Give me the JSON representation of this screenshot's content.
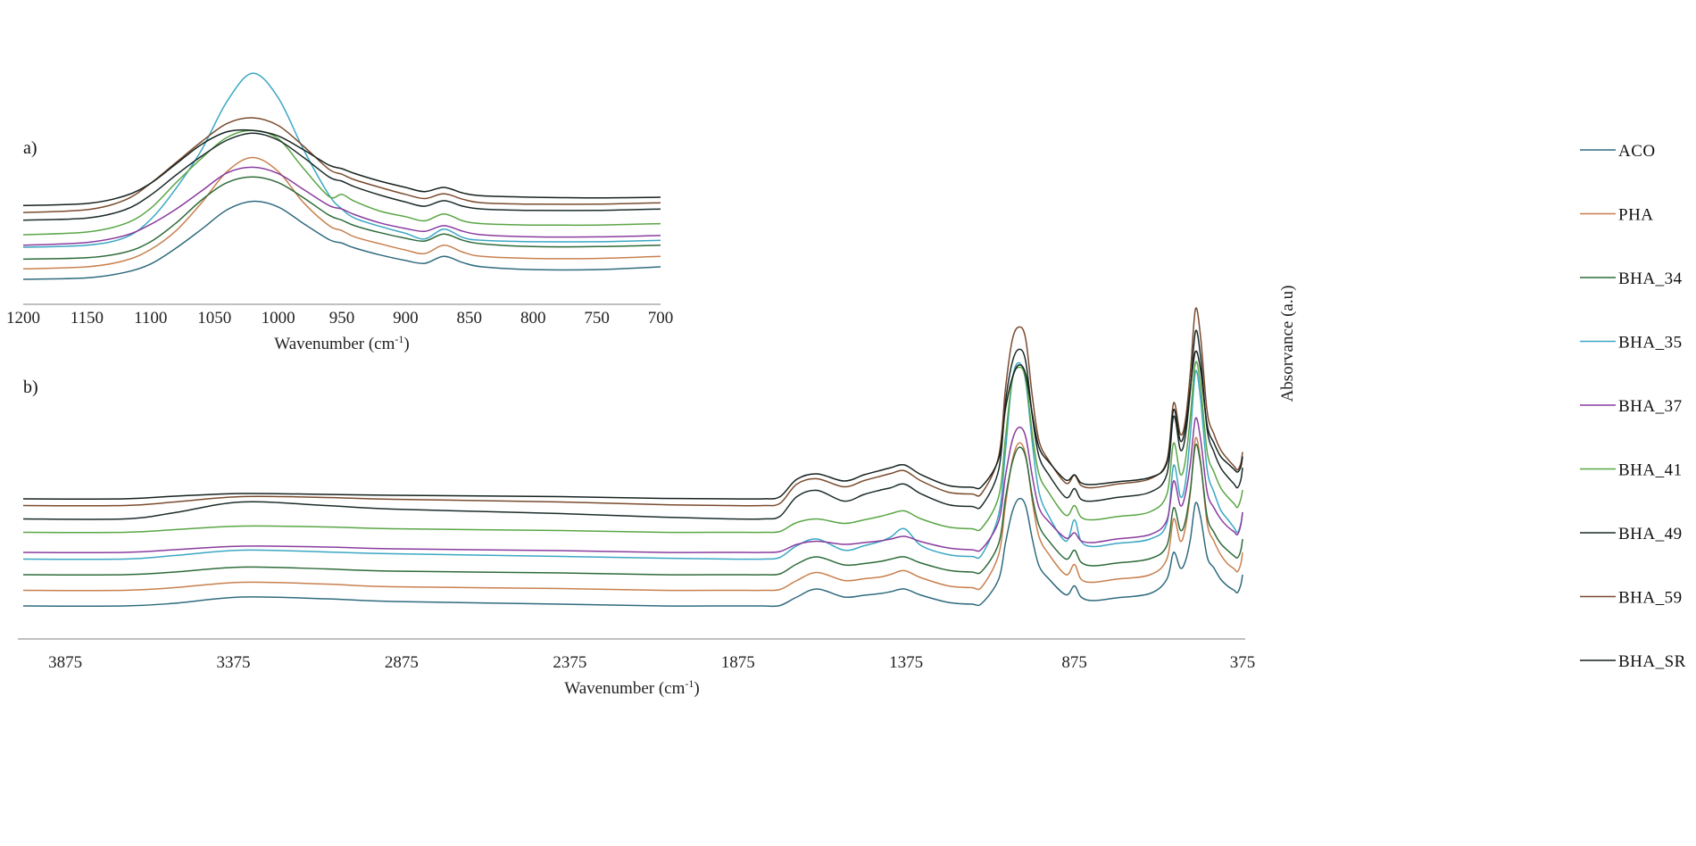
{
  "chart_data": [
    {
      "panel": "a)",
      "type": "line",
      "title": "",
      "xlabel": "Wavenumber (cm-1)",
      "ylabel": "Absorvance (a.u)",
      "xlim": [
        1200,
        700
      ],
      "x_ticks": [
        1200,
        1150,
        1100,
        1050,
        1000,
        950,
        900,
        850,
        800,
        750,
        700
      ],
      "grid": false,
      "x": [
        1200,
        1150,
        1120,
        1100,
        1080,
        1060,
        1040,
        1020,
        1000,
        980,
        960,
        950,
        940,
        920,
        900,
        885,
        870,
        855,
        840,
        800,
        750,
        700
      ],
      "series": [
        {
          "name": "ACO",
          "color": "#2f6b7e",
          "offset": 0,
          "values": [
            0,
            2,
            10,
            22,
            45,
            72,
            100,
            112,
            104,
            80,
            57,
            52,
            45,
            35,
            27,
            23,
            33,
            24,
            18,
            14,
            14,
            18
          ]
        },
        {
          "name": "PHA",
          "color": "#c8804f",
          "offset": 15,
          "values": [
            0,
            3,
            12,
            28,
            55,
            95,
            140,
            160,
            140,
            95,
            62,
            55,
            46,
            36,
            27,
            22,
            34,
            24,
            18,
            15,
            15,
            18
          ]
        },
        {
          "name": "BHA_34",
          "color": "#2e6b3a",
          "offset": 29,
          "values": [
            0,
            2,
            10,
            25,
            52,
            85,
            110,
            118,
            110,
            88,
            63,
            56,
            48,
            38,
            30,
            26,
            36,
            27,
            22,
            18,
            18,
            20
          ]
        },
        {
          "name": "BHA_35",
          "color": "#3ba7c4",
          "offset": 46,
          "values": [
            0,
            3,
            14,
            40,
            85,
            140,
            210,
            250,
            215,
            140,
            75,
            55,
            42,
            30,
            20,
            12,
            26,
            14,
            10,
            8,
            8,
            10
          ]
        },
        {
          "name": "BHA_37",
          "color": "#8a3c9e",
          "offset": 49,
          "values": [
            0,
            4,
            14,
            30,
            52,
            78,
            104,
            112,
            103,
            80,
            57,
            52,
            44,
            32,
            24,
            20,
            28,
            20,
            15,
            12,
            12,
            14
          ]
        },
        {
          "name": "BHA_41",
          "color": "#5aa646",
          "offset": 64,
          "values": [
            0,
            4,
            16,
            38,
            75,
            110,
            140,
            150,
            138,
            95,
            55,
            58,
            48,
            34,
            26,
            20,
            30,
            20,
            16,
            14,
            14,
            16
          ]
        },
        {
          "name": "BHA_49",
          "color": "#1c2b2b",
          "offset": 85,
          "values": [
            0,
            3,
            15,
            36,
            65,
            92,
            115,
            125,
            115,
            90,
            62,
            56,
            48,
            36,
            26,
            20,
            28,
            20,
            16,
            14,
            14,
            16
          ]
        },
        {
          "name": "BHA_59",
          "color": "#7a4b2e",
          "offset": 96,
          "values": [
            0,
            4,
            18,
            42,
            72,
            102,
            128,
            136,
            125,
            95,
            62,
            55,
            47,
            36,
            26,
            20,
            27,
            19,
            14,
            12,
            12,
            14
          ]
        },
        {
          "name": "BHA_SR",
          "color": "#15221f",
          "offset": 106,
          "values": [
            0,
            3,
            14,
            32,
            60,
            88,
            106,
            108,
            100,
            80,
            58,
            53,
            46,
            35,
            26,
            20,
            26,
            18,
            14,
            12,
            11,
            12
          ]
        }
      ]
    },
    {
      "panel": "b)",
      "type": "line",
      "title": "",
      "xlabel": "Wavenumber (cm-1)",
      "ylabel": "Absorvance (a.u)",
      "xlim": [
        4000,
        375
      ],
      "x_ticks": [
        3875,
        3375,
        2875,
        2375,
        1875,
        1375,
        875,
        375
      ],
      "grid": false,
      "x": [
        4000,
        3700,
        3550,
        3350,
        3100,
        2900,
        2400,
        2100,
        1900,
        1800,
        1750,
        1700,
        1640,
        1560,
        1500,
        1450,
        1420,
        1380,
        1330,
        1250,
        1180,
        1150,
        1100,
        1080,
        1060,
        1040,
        1020,
        1000,
        980,
        950,
        900,
        875,
        855,
        820,
        750,
        650,
        600,
        580,
        560,
        545,
        530,
        515,
        500,
        480,
        460,
        440,
        420,
        400,
        390,
        380,
        375
      ],
      "series": [
        {
          "name": "ACO",
          "color": "#2f6b7e",
          "offset": 0,
          "values": [
            0,
            0,
            6,
            20,
            16,
            10,
            4,
            0,
            0,
            0,
            1,
            20,
            38,
            20,
            24,
            28,
            32,
            38,
            24,
            8,
            4,
            6,
            60,
            140,
            210,
            240,
            225,
            150,
            90,
            60,
            25,
            45,
            20,
            12,
            18,
            28,
            60,
            120,
            85,
            100,
            150,
            230,
            200,
            110,
            85,
            60,
            45,
            35,
            30,
            48,
            70
          ]
        },
        {
          "name": "PHA",
          "color": "#c8804f",
          "offset": 35,
          "values": [
            0,
            0,
            6,
            18,
            14,
            8,
            4,
            0,
            0,
            0,
            2,
            22,
            40,
            22,
            26,
            30,
            36,
            44,
            28,
            10,
            6,
            8,
            80,
            190,
            290,
            330,
            305,
            200,
            120,
            80,
            35,
            58,
            25,
            18,
            25,
            35,
            70,
            160,
            110,
            140,
            220,
            340,
            290,
            150,
            110,
            80,
            60,
            48,
            42,
            60,
            85
          ]
        },
        {
          "name": "BHA_34",
          "color": "#2e6b3a",
          "offset": 70,
          "values": [
            0,
            0,
            6,
            17,
            13,
            8,
            4,
            0,
            0,
            0,
            2,
            24,
            40,
            22,
            25,
            30,
            35,
            40,
            26,
            10,
            6,
            8,
            70,
            170,
            250,
            285,
            265,
            175,
            110,
            75,
            35,
            55,
            28,
            20,
            26,
            36,
            65,
            150,
            100,
            120,
            190,
            290,
            250,
            130,
            95,
            70,
            55,
            42,
            38,
            55,
            80
          ]
        },
        {
          "name": "BHA_35",
          "color": "#3ba7c4",
          "offset": 105,
          "values": [
            0,
            0,
            8,
            20,
            16,
            12,
            6,
            2,
            0,
            0,
            4,
            30,
            45,
            20,
            30,
            40,
            50,
            68,
            30,
            10,
            6,
            10,
            100,
            240,
            400,
            440,
            400,
            260,
            150,
            95,
            40,
            88,
            40,
            28,
            35,
            45,
            80,
            210,
            140,
            170,
            280,
            420,
            360,
            200,
            150,
            110,
            90,
            70,
            60,
            80,
            105
          ]
        },
        {
          "name": "BHA_37",
          "color": "#8a3c9e",
          "offset": 120,
          "values": [
            0,
            0,
            6,
            14,
            12,
            8,
            4,
            0,
            0,
            0,
            2,
            18,
            25,
            18,
            22,
            26,
            30,
            36,
            24,
            10,
            6,
            8,
            70,
            170,
            250,
            280,
            260,
            170,
            100,
            68,
            32,
            44,
            26,
            22,
            30,
            40,
            72,
            160,
            105,
            130,
            200,
            300,
            255,
            135,
            100,
            75,
            58,
            46,
            40,
            62,
            90
          ]
        },
        {
          "name": "BHA_41",
          "color": "#5aa646",
          "offset": 165,
          "values": [
            0,
            0,
            6,
            14,
            12,
            8,
            4,
            0,
            0,
            0,
            2,
            22,
            30,
            20,
            28,
            36,
            42,
            48,
            30,
            12,
            8,
            10,
            80,
            210,
            340,
            370,
            345,
            220,
            130,
            88,
            38,
            60,
            34,
            28,
            35,
            46,
            85,
            200,
            130,
            160,
            260,
            380,
            330,
            180,
            135,
            100,
            80,
            64,
            56,
            75,
            95
          ]
        },
        {
          "name": "BHA_49",
          "color": "#1c2b2b",
          "offset": 195,
          "values": [
            0,
            0,
            14,
            38,
            30,
            22,
            12,
            4,
            0,
            0,
            6,
            50,
            64,
            40,
            55,
            65,
            70,
            78,
            56,
            32,
            28,
            30,
            110,
            260,
            350,
            380,
            355,
            230,
            140,
            98,
            48,
            68,
            44,
            40,
            48,
            60,
            100,
            230,
            155,
            185,
            290,
            420,
            365,
            200,
            150,
            115,
            95,
            78,
            70,
            88,
            115
          ]
        },
        {
          "name": "BHA_59",
          "color": "#7a4b2e",
          "offset": 225,
          "values": [
            0,
            0,
            8,
            20,
            18,
            14,
            8,
            2,
            0,
            0,
            5,
            48,
            60,
            42,
            56,
            66,
            72,
            78,
            55,
            30,
            26,
            28,
            110,
            260,
            370,
            400,
            375,
            245,
            145,
            100,
            50,
            68,
            45,
            40,
            48,
            60,
            100,
            230,
            160,
            190,
            300,
            440,
            380,
            210,
            160,
            125,
            105,
            88,
            80,
            95,
            120
          ]
        },
        {
          "name": "BHA_SR",
          "color": "#15221f",
          "offset": 240,
          "values": [
            0,
            0,
            6,
            12,
            10,
            8,
            5,
            1,
            0,
            0,
            5,
            44,
            56,
            40,
            54,
            64,
            70,
            76,
            54,
            30,
            26,
            28,
            90,
            200,
            270,
            300,
            280,
            190,
            115,
            82,
            42,
            54,
            36,
            32,
            38,
            48,
            80,
            200,
            130,
            160,
            250,
            330,
            290,
            165,
            125,
            95,
            80,
            66,
            60,
            72,
            95
          ]
        }
      ]
    }
  ],
  "panel_a": {
    "label": "a)",
    "xlabel": "Wavenumber (cm",
    "xlabel_sup": "-1",
    "xlabel_close": ")",
    "ticks": [
      "1200",
      "1150",
      "1100",
      "1050",
      "1000",
      "950",
      "900",
      "850",
      "800",
      "750",
      "700"
    ]
  },
  "panel_b": {
    "label": "b)",
    "xlabel": "Wavenumber (cm",
    "xlabel_sup": "-1",
    "xlabel_close": ")",
    "ticks": [
      "3875",
      "3375",
      "2875",
      "2375",
      "1875",
      "1375",
      "875",
      "375"
    ]
  },
  "ylabel": "Absorvance (a.u)",
  "legend": [
    {
      "label": "ACO",
      "color": "#2f6b7e"
    },
    {
      "label": "PHA",
      "color": "#c8804f"
    },
    {
      "label": "BHA_34",
      "color": "#2e6b3a"
    },
    {
      "label": "BHA_35",
      "color": "#3ba7c4"
    },
    {
      "label": "BHA_37",
      "color": "#8a3c9e"
    },
    {
      "label": "BHA_41",
      "color": "#5aa646"
    },
    {
      "label": "BHA_49",
      "color": "#1c2b2b"
    },
    {
      "label": "BHA_59",
      "color": "#7a4b2e"
    },
    {
      "label": "BHA_SR",
      "color": "#15221f"
    }
  ]
}
